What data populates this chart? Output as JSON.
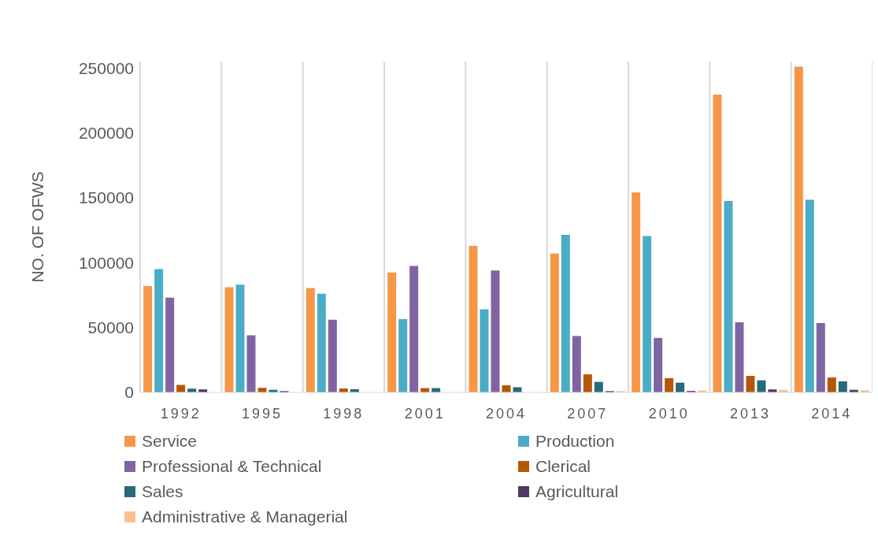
{
  "chart_data": {
    "type": "bar",
    "ylabel": "NO. OF OFWS",
    "categories": [
      "1992",
      "1995",
      "1998",
      "2001",
      "2004",
      "2007",
      "2010",
      "2013",
      "2014"
    ],
    "series": [
      {
        "name": "Service",
        "color": "#f79646",
        "values": [
          82000,
          81000,
          80500,
          92500,
          113000,
          107000,
          154000,
          229500,
          251000
        ]
      },
      {
        "name": "Production",
        "color": "#4bacc6",
        "values": [
          95000,
          83000,
          76000,
          56500,
          64000,
          121500,
          120500,
          147500,
          148500
        ]
      },
      {
        "name": "Professional & Technical",
        "color": "#8064a2",
        "values": [
          73000,
          44000,
          56000,
          97500,
          94000,
          43500,
          42000,
          54000,
          53500
        ]
      },
      {
        "name": "Clerical",
        "color": "#b65708",
        "values": [
          5800,
          3500,
          3000,
          3300,
          5500,
          13900,
          11000,
          12700,
          11500
        ]
      },
      {
        "name": "Sales",
        "color": "#276a7c",
        "values": [
          2900,
          2000,
          2500,
          3300,
          4000,
          8100,
          7500,
          9300,
          8500
        ]
      },
      {
        "name": "Agricultural",
        "color": "#4d3b62",
        "values": [
          2300,
          1000,
          0,
          0,
          null,
          1000,
          1100,
          2300,
          2000
        ]
      },
      {
        "name": "Administrative & Managerial",
        "color": "#fac090",
        "values": [
          0,
          0,
          0,
          0,
          0,
          1000,
          1500,
          2000,
          1700
        ]
      }
    ],
    "ylim": [
      0,
      255000
    ],
    "yticks": [
      0,
      50000,
      100000,
      150000,
      200000,
      250000
    ],
    "grid": "x",
    "legend": "bottom"
  }
}
